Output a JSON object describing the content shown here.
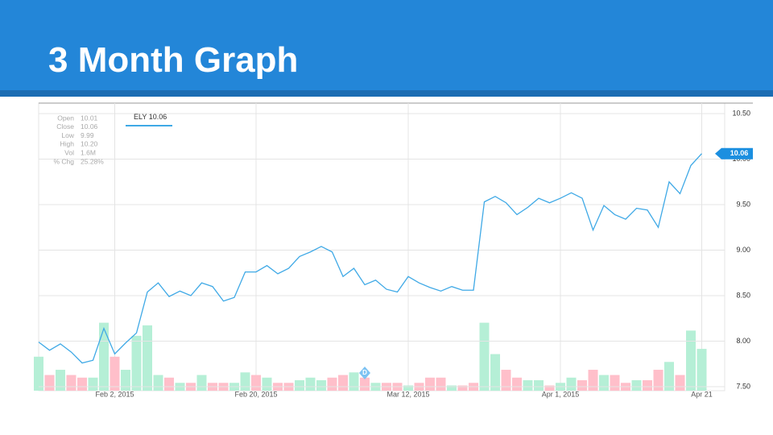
{
  "title": "3 Month Graph",
  "chart_data": {
    "type": "line",
    "info": [
      {
        "label": "Open",
        "value": "10.01"
      },
      {
        "label": "Close",
        "value": "10.06"
      },
      {
        "label": "Low",
        "value": "9.99"
      },
      {
        "label": "High",
        "value": "10.20"
      },
      {
        "label": "Vol",
        "value": "1.6M"
      },
      {
        "label": "% Chg",
        "value": "25.28%"
      }
    ],
    "categories": [
      null,
      null,
      null,
      null,
      null,
      null,
      null,
      "Feb 2, 2015",
      null,
      null,
      null,
      null,
      null,
      null,
      null,
      null,
      null,
      null,
      null,
      null,
      "Feb 20, 2015",
      null,
      null,
      null,
      null,
      null,
      null,
      null,
      null,
      null,
      null,
      null,
      null,
      null,
      "Mar 12, 2015",
      null,
      null,
      null,
      null,
      null,
      null,
      null,
      null,
      null,
      null,
      null,
      null,
      null,
      "Apr 1, 2015",
      null,
      null,
      null,
      null,
      null,
      null,
      null,
      null,
      null,
      null,
      null,
      null,
      "Apr 21"
    ],
    "series": [
      {
        "name": "ELY",
        "color": "#3fa9e6",
        "values": [
          7.99,
          7.9,
          7.97,
          7.88,
          7.76,
          7.79,
          8.14,
          7.86,
          7.98,
          8.09,
          8.54,
          8.64,
          8.49,
          8.55,
          8.5,
          8.64,
          8.6,
          8.44,
          8.48,
          8.76,
          8.76,
          8.83,
          8.74,
          8.8,
          8.93,
          8.98,
          9.04,
          8.98,
          8.71,
          8.8,
          8.62,
          8.67,
          8.57,
          8.54,
          8.71,
          8.64,
          8.59,
          8.55,
          8.6,
          8.56,
          8.56,
          9.53,
          9.59,
          9.52,
          9.39,
          9.47,
          9.57,
          9.52,
          9.57,
          9.63,
          9.57,
          9.22,
          9.49,
          9.39,
          9.34,
          9.46,
          9.44,
          9.25,
          9.75,
          9.62,
          9.93,
          10.06
        ]
      },
      {
        "type": "bar",
        "axis": "y2",
        "values": [
          1.3,
          0.6,
          0.8,
          0.6,
          0.5,
          0.5,
          2.6,
          1.3,
          0.8,
          2.1,
          2.5,
          0.6,
          0.5,
          0.3,
          0.3,
          0.6,
          0.3,
          0.3,
          0.3,
          0.7,
          0.6,
          0.5,
          0.3,
          0.3,
          0.4,
          0.5,
          0.4,
          0.5,
          0.6,
          0.7,
          0.5,
          0.3,
          0.3,
          0.3,
          0.2,
          0.3,
          0.5,
          0.5,
          0.2,
          0.2,
          0.3,
          2.6,
          1.4,
          0.8,
          0.5,
          0.4,
          0.4,
          0.2,
          0.3,
          0.5,
          0.4,
          0.8,
          0.6,
          0.6,
          0.3,
          0.4,
          0.4,
          0.8,
          1.1,
          0.6,
          2.3,
          1.6
        ],
        "colors": [
          "#b5efd6",
          "#ffbfca",
          "#b5efd6",
          "#ffbfca",
          "#ffbfca",
          "#b5efd6",
          "#b5efd6",
          "#ffbfca",
          "#b5efd6",
          "#b5efd6",
          "#b5efd6",
          "#b5efd6",
          "#ffbfca",
          "#b5efd6",
          "#ffbfca",
          "#b5efd6",
          "#ffbfca",
          "#ffbfca",
          "#b5efd6",
          "#b5efd6",
          "#ffbfca",
          "#b5efd6",
          "#ffbfca",
          "#ffbfca",
          "#b5efd6",
          "#b5efd6",
          "#b5efd6",
          "#ffbfca",
          "#ffbfca",
          "#b5efd6",
          "#ffbfca",
          "#b5efd6",
          "#ffbfca",
          "#ffbfca",
          "#b5efd6",
          "#ffbfca",
          "#ffbfca",
          "#ffbfca",
          "#b5efd6",
          "#ffbfca",
          "#ffbfca",
          "#b5efd6",
          "#b5efd6",
          "#ffbfca",
          "#ffbfca",
          "#b5efd6",
          "#b5efd6",
          "#ffbfca",
          "#b5efd6",
          "#b5efd6",
          "#ffbfca",
          "#ffbfca",
          "#b5efd6",
          "#ffbfca",
          "#ffbfca",
          "#b5efd6",
          "#ffbfca",
          "#ffbfca",
          "#b5efd6",
          "#ffbfca",
          "#b5efd6",
          "#b5efd6"
        ]
      }
    ],
    "events": [
      {
        "index": 30,
        "label": "D"
      }
    ],
    "ylim": [
      7.5,
      10.5
    ],
    "yticks": [
      {
        "value": 7.5,
        "label": "7.50"
      },
      {
        "value": 8,
        "label": "8.00"
      },
      {
        "value": 8.5,
        "label": "8.50"
      },
      {
        "value": 9,
        "label": "9.00"
      },
      {
        "value": 9.5,
        "label": "9.50"
      },
      {
        "value": 10,
        "label": "10.00"
      },
      {
        "value": 10.5,
        "label": "10.50"
      }
    ],
    "y2lim": [
      0,
      11
    ],
    "grid": true
  }
}
